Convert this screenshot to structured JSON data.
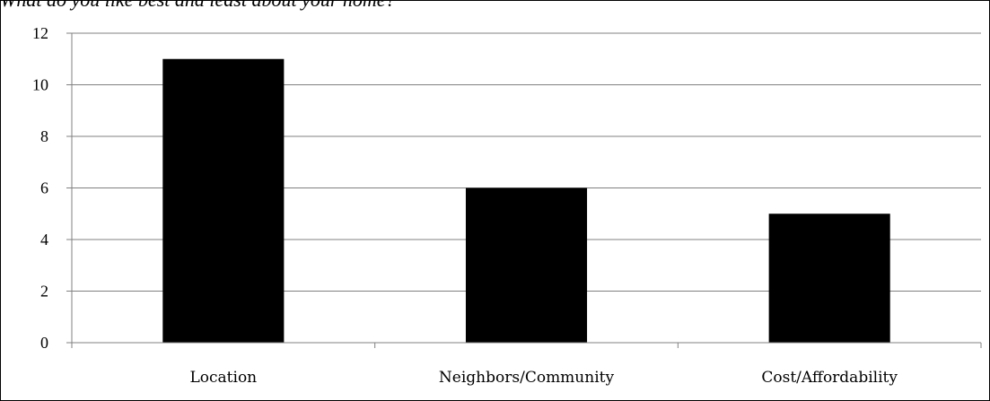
{
  "chart_data": {
    "type": "bar",
    "title": "What do you like best and least about your home?",
    "categories": [
      "Location",
      "Neighbors/Community",
      "Cost/Affordability"
    ],
    "values": [
      11,
      6,
      5
    ],
    "xlabel": "",
    "ylabel": "",
    "ylim": [
      0,
      12
    ],
    "yticks": [
      0,
      2,
      4,
      6,
      8,
      10,
      12
    ],
    "grid": true,
    "legend": "none",
    "bar_color": "#000000"
  }
}
